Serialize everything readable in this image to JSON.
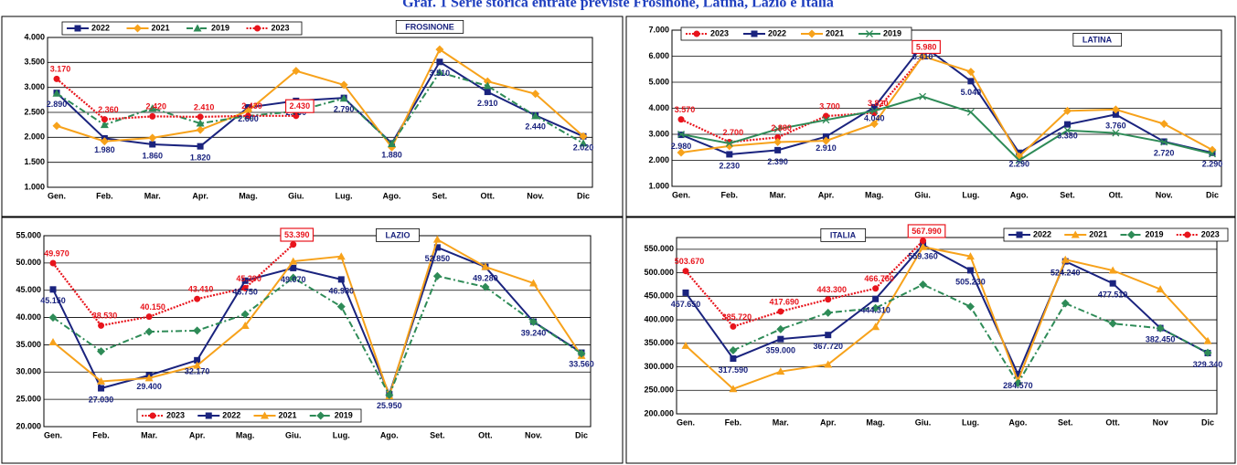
{
  "title": "Graf. 1  Serie storica entrate previste Frosinone, Latina, Lazio e Italia",
  "chart_data": [
    {
      "type": "line",
      "title": "FROSINONE",
      "legend": "top-left",
      "categories": [
        "Gen.",
        "Feb.",
        "Mar.",
        "Apr.",
        "Mag.",
        "Giu.",
        "Lug.",
        "Ago.",
        "Set.",
        "Ott.",
        "Nov.",
        "Dic"
      ],
      "ylim": [
        1000,
        4000
      ],
      "yticks": [
        {
          "value": 1000,
          "label": "1.000"
        },
        {
          "value": 1500,
          "label": "1.500"
        },
        {
          "value": 2000,
          "label": "2.000"
        },
        {
          "value": 2500,
          "label": "2.500"
        },
        {
          "value": 3000,
          "label": "3.000"
        },
        {
          "value": 3500,
          "label": "3.500"
        },
        {
          "value": 4000,
          "label": "4.000"
        }
      ],
      "grid": true,
      "series": [
        {
          "name": "2022",
          "color": "#1a237e",
          "marker": "square",
          "dash": "solid",
          "values": [
            2890,
            1980,
            1860,
            1820,
            2600,
            2730,
            2790,
            1880,
            3510,
            2910,
            2440,
            2020
          ],
          "value_labels": [
            "2.890",
            "1.980",
            "1.860",
            "1.820",
            "2.600",
            "2.730",
            "2.790",
            "1.880",
            "3.510",
            "2.910",
            "2.440",
            "2.020"
          ]
        },
        {
          "name": "2021",
          "color": "#f7a21b",
          "marker": "diamond",
          "dash": "solid",
          "values": [
            2230,
            1920,
            1990,
            2150,
            2530,
            3330,
            3050,
            1800,
            3760,
            3120,
            2870,
            2020
          ]
        },
        {
          "name": "2019",
          "color": "#2e8b57",
          "marker": "triangle",
          "dash": "dashdot",
          "values": [
            2880,
            2250,
            2580,
            2280,
            2430,
            2520,
            2780,
            1870,
            3300,
            3030,
            2430,
            1880
          ]
        },
        {
          "name": "2023",
          "color": "#e8141c",
          "marker": "circle",
          "dash": "dotted",
          "boxed_label": 5,
          "values": [
            3170,
            2360,
            2420,
            2410,
            2430,
            2430,
            null,
            null,
            null,
            null,
            null,
            null
          ],
          "value_labels": [
            "3.170",
            "2.360",
            "2.420",
            "2.410",
            "2.430",
            "2.430",
            null,
            null,
            null,
            null,
            null,
            null
          ]
        }
      ]
    },
    {
      "type": "line",
      "title": "LATINA",
      "legend": "top-left",
      "categories": [
        "Gen.",
        "Feb.",
        "Mar.",
        "Apr.",
        "Mag.",
        "Giu.",
        "Lug.",
        "Ago.",
        "Set.",
        "Ott.",
        "Nov.",
        "Dic"
      ],
      "ylim": [
        1000,
        7000
      ],
      "yticks": [
        {
          "value": 1000,
          "label": "1.000"
        },
        {
          "value": 2000,
          "label": "2.000"
        },
        {
          "value": 3000,
          "label": "3.000"
        },
        {
          "value": 4000,
          "label": "4.000"
        },
        {
          "value": 5000,
          "label": "5.000"
        },
        {
          "value": 6000,
          "label": "6.000"
        },
        {
          "value": 7000,
          "label": "7.000"
        }
      ],
      "grid": true,
      "series": [
        {
          "name": "2023",
          "color": "#e8141c",
          "marker": "circle",
          "dash": "dotted",
          "boxed_label": 5,
          "values": [
            3570,
            2700,
            2880,
            3700,
            3820,
            5980,
            null,
            null,
            null,
            null,
            null,
            null
          ],
          "value_labels": [
            "3.570",
            "2.700",
            "2.880",
            "3.700",
            "3.820",
            "5.980",
            null,
            null,
            null,
            null,
            null,
            null
          ]
        },
        {
          "name": "2022",
          "color": "#1a237e",
          "marker": "square",
          "dash": "solid",
          "values": [
            2980,
            2230,
            2390,
            2910,
            4040,
            6410,
            5040,
            2290,
            3380,
            3760,
            2720,
            2290
          ],
          "value_labels": [
            "2.980",
            "2.230",
            "2.390",
            "2.910",
            "4.040",
            "6.410",
            "5.040",
            "2.290",
            "3.380",
            "3.760",
            "2.720",
            "2.290"
          ]
        },
        {
          "name": "2021",
          "color": "#f7a21b",
          "marker": "diamond",
          "dash": "solid",
          "values": [
            2300,
            2550,
            2700,
            2750,
            3400,
            6000,
            5400,
            2150,
            3900,
            3950,
            3400,
            2400
          ]
        },
        {
          "name": "2019",
          "color": "#2e8b57",
          "marker": "cross",
          "dash": "solid",
          "values": [
            3000,
            2650,
            3200,
            3550,
            3900,
            4450,
            3850,
            2000,
            3150,
            3050,
            2700,
            2250
          ]
        }
      ]
    },
    {
      "type": "line",
      "title": "LAZIO",
      "legend": "bottom-left",
      "categories": [
        "Gen.",
        "Feb.",
        "Mar.",
        "Apr.",
        "Mag.",
        "Giu.",
        "Lug.",
        "Ago.",
        "Set.",
        "Ott.",
        "Nov.",
        "Dic"
      ],
      "ylim": [
        20000,
        55000
      ],
      "yticks": [
        {
          "value": 20000,
          "label": "20.000"
        },
        {
          "value": 25000,
          "label": "25.000"
        },
        {
          "value": 30000,
          "label": "30.000"
        },
        {
          "value": 35000,
          "label": "35.000"
        },
        {
          "value": 40000,
          "label": "40.000"
        },
        {
          "value": 45000,
          "label": "45.000"
        },
        {
          "value": 50000,
          "label": "50.000"
        },
        {
          "value": 55000,
          "label": "55.000"
        }
      ],
      "grid": true,
      "series": [
        {
          "name": "2023",
          "color": "#e8141c",
          "marker": "circle",
          "dash": "dotted",
          "boxed_label": 5,
          "values": [
            49970,
            38530,
            40150,
            43410,
            45390,
            53390,
            null,
            null,
            null,
            null,
            null,
            null
          ],
          "value_labels": [
            "49.970",
            "38.530",
            "40.150",
            "43.410",
            "45.390",
            "53.390",
            null,
            null,
            null,
            null,
            null,
            null
          ]
        },
        {
          "name": "2022",
          "color": "#1a237e",
          "marker": "square",
          "dash": "solid",
          "values": [
            45150,
            27030,
            29400,
            32170,
            46750,
            49070,
            46980,
            25950,
            52850,
            49280,
            39240,
            33560
          ],
          "value_labels": [
            "45.150",
            "27.030",
            "29.400",
            "32.170",
            "46.750",
            "49.070",
            "46.980",
            "25.950",
            "52.850",
            "49.280",
            "39.240",
            "33.560"
          ]
        },
        {
          "name": "2021",
          "color": "#f7a21b",
          "marker": "triangle",
          "dash": "solid",
          "values": [
            35500,
            28300,
            28900,
            31200,
            38500,
            50300,
            51200,
            25600,
            54300,
            49300,
            46300,
            33000
          ]
        },
        {
          "name": "2019",
          "color": "#2e8b57",
          "marker": "diamond",
          "dash": "dashdot",
          "values": [
            40000,
            33800,
            37400,
            37600,
            40600,
            47300,
            42000,
            25800,
            47600,
            45600,
            39200,
            33400
          ]
        }
      ]
    },
    {
      "type": "line",
      "title": "ITALIA",
      "legend": "top-right",
      "categories": [
        "Gen.",
        "Feb.",
        "Mar.",
        "Apr.",
        "Mag.",
        "Giu.",
        "Lug.",
        "Ago.",
        "Set.",
        "Ott.",
        "Nov",
        "Dic"
      ],
      "ylim": [
        200000,
        575000
      ],
      "yticks": [
        {
          "value": 200000,
          "label": "200.000"
        },
        {
          "value": 250000,
          "label": "250.000"
        },
        {
          "value": 300000,
          "label": "300.000"
        },
        {
          "value": 350000,
          "label": "350.000"
        },
        {
          "value": 400000,
          "label": "400.000"
        },
        {
          "value": 450000,
          "label": "450.000"
        },
        {
          "value": 500000,
          "label": "500.000"
        },
        {
          "value": 550000,
          "label": "550.000"
        }
      ],
      "grid": true,
      "series": [
        {
          "name": "2022",
          "color": "#1a237e",
          "marker": "square",
          "dash": "solid",
          "values": [
            457650,
            317590,
            359000,
            367720,
            444310,
            559360,
            505230,
            284570,
            524240,
            477510,
            382450,
            329340
          ],
          "value_labels": [
            "457.650",
            "317.590",
            "359.000",
            "367.720",
            "444.310",
            "559.360",
            "505.230",
            "284.570",
            "524.240",
            "477.510",
            "382.450",
            "329.340"
          ]
        },
        {
          "name": "2021",
          "color": "#f7a21b",
          "marker": "triangle",
          "dash": "solid",
          "values": [
            345000,
            253000,
            290000,
            305000,
            385000,
            555000,
            535000,
            270000,
            528000,
            505000,
            465000,
            355000
          ]
        },
        {
          "name": "2019",
          "color": "#2e8b57",
          "marker": "diamond",
          "dash": "dashdot",
          "values": [
            null,
            335000,
            380000,
            415000,
            425000,
            475000,
            428000,
            265000,
            435000,
            392000,
            382000,
            330000
          ]
        },
        {
          "name": "2023",
          "color": "#e8141c",
          "marker": "circle",
          "dash": "dotted",
          "boxed_label": 5,
          "values": [
            503670,
            385720,
            417690,
            443300,
            466750,
            567990,
            null,
            null,
            null,
            null,
            null,
            null
          ],
          "value_labels": [
            "503.670",
            "385.720",
            "417.690",
            "443.300",
            "466.750",
            "567.990",
            null,
            null,
            null,
            null,
            null,
            null
          ]
        }
      ]
    }
  ]
}
